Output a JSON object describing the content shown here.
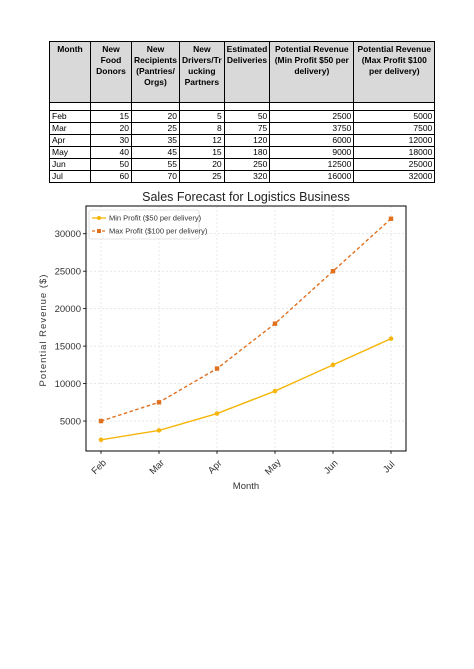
{
  "table": {
    "headers": [
      "Month",
      "New Food Donors",
      "New Recipients (Pantries/ Orgs)",
      "New Drivers/Tr ucking Partners",
      "Estimated Deliveries",
      "Potential Revenue (Min Profit $50 per delivery)",
      "Potential Revenue (Max Profit $100 per delivery)"
    ],
    "rows": [
      [
        "Feb",
        "15",
        "20",
        "5",
        "50",
        "2500",
        "5000"
      ],
      [
        "Mar",
        "20",
        "25",
        "8",
        "75",
        "3750",
        "7500"
      ],
      [
        "Apr",
        "30",
        "35",
        "12",
        "120",
        "6000",
        "12000"
      ],
      [
        "May",
        "40",
        "45",
        "15",
        "180",
        "9000",
        "18000"
      ],
      [
        "Jun",
        "50",
        "55",
        "20",
        "250",
        "12500",
        "25000"
      ],
      [
        "Jul",
        "60",
        "70",
        "25",
        "320",
        "16000",
        "32000"
      ]
    ]
  },
  "chart_data": {
    "type": "line",
    "title": "Sales Forecast for Logistics Business",
    "xlabel": "Month",
    "ylabel": "Potential Revenue ($)",
    "categories": [
      "Feb",
      "Mar",
      "Apr",
      "May",
      "Jun",
      "Jul"
    ],
    "series": [
      {
        "name": "Min Profit ($50 per delivery)",
        "values": [
          2500,
          3750,
          6000,
          9000,
          12500,
          16000
        ],
        "color": "#f5b50a",
        "style": "solid",
        "marker": "circle"
      },
      {
        "name": "Max Profit ($100 per delivery)",
        "values": [
          5000,
          7500,
          12000,
          18000,
          25000,
          32000
        ],
        "color": "#e0701f",
        "style": "dashed",
        "marker": "square"
      }
    ],
    "yticks": [
      5000,
      10000,
      15000,
      20000,
      25000,
      30000
    ],
    "ylim": [
      1000,
      33700
    ],
    "grid": true,
    "legend_position": "top-left"
  }
}
